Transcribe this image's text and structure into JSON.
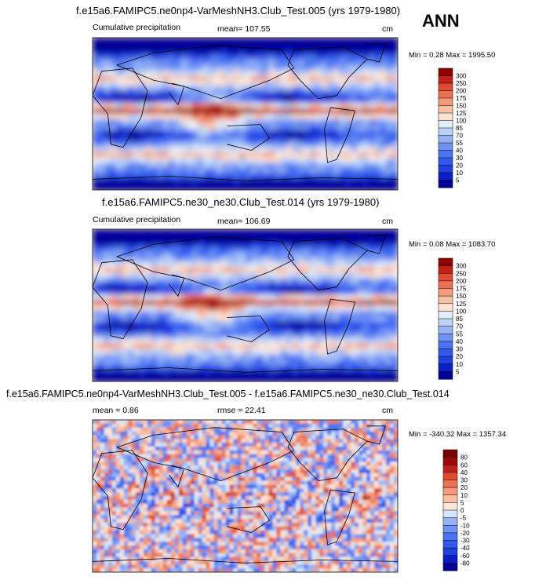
{
  "season_label": "ANN",
  "panels": [
    {
      "title": "f.e15a6.FAMIPC5.ne0np4-VarMeshNH3.Club_Test.005 (yrs 1979-1980)",
      "left_label": "Cumulative precipitation",
      "center_label": "mean= 107.55",
      "units": "cm",
      "minmax": "Min =   0.28 Max = 1995.50"
    },
    {
      "title": "f.e15a6.FAMIPC5.ne30_ne30.Club_Test.014 (yrs 1979-1980)",
      "left_label": "Cumulative precipitation",
      "center_label": "mean= 106.69",
      "units": "cm",
      "minmax": "Min =   0.08 Max = 1083.70"
    },
    {
      "title": "f.e15a6.FAMIPC5.ne0np4-VarMeshNH3.Club_Test.005 - f.e15a6.FAMIPC5.ne30_ne30.Club_Test.014",
      "left_label": "mean =   0.86",
      "center_label": "rmse =  22.41",
      "units": "cm",
      "minmax": "Min = -340.32 Max = 1357.34"
    }
  ],
  "chart_data": [
    {
      "type": "heatmap",
      "title": "f.e15a6.FAMIPC5.ne0np4-VarMeshNH3.Club_Test.005 (yrs 1979-1980)",
      "variable": "Cumulative precipitation",
      "units": "cm",
      "mean": 107.55,
      "min": 0.28,
      "max": 1995.5,
      "colorbar_levels": [
        5,
        10,
        20,
        30,
        40,
        55,
        70,
        85,
        100,
        125,
        150,
        175,
        200,
        250,
        300
      ],
      "colorbar_colors": [
        "#000099",
        "#0a1ec8",
        "#1f3fe0",
        "#3058ee",
        "#4a74f2",
        "#6f93f4",
        "#95b2f5",
        "#bcd2f8",
        "#e3eefb",
        "#fde2d2",
        "#f8bfa4",
        "#f49a78",
        "#ec7152",
        "#e04a30",
        "#c22016",
        "#8f0000"
      ]
    },
    {
      "type": "heatmap",
      "title": "f.e15a6.FAMIPC5.ne30_ne30.Club_Test.014 (yrs 1979-1980)",
      "variable": "Cumulative precipitation",
      "units": "cm",
      "mean": 106.69,
      "min": 0.08,
      "max": 1083.7,
      "colorbar_levels": [
        5,
        10,
        20,
        30,
        40,
        55,
        70,
        85,
        100,
        125,
        150,
        175,
        200,
        250,
        300
      ],
      "colorbar_colors": [
        "#000099",
        "#0a1ec8",
        "#1f3fe0",
        "#3058ee",
        "#4a74f2",
        "#6f93f4",
        "#95b2f5",
        "#bcd2f8",
        "#e3eefb",
        "#fde2d2",
        "#f8bfa4",
        "#f49a78",
        "#ec7152",
        "#e04a30",
        "#c22016",
        "#8f0000"
      ]
    },
    {
      "type": "heatmap",
      "title": "f.e15a6.FAMIPC5.ne0np4-VarMeshNH3.Club_Test.005 - f.e15a6.FAMIPC5.ne30_ne30.Club_Test.014",
      "units": "cm",
      "mean": 0.86,
      "rmse": 22.41,
      "min": -340.32,
      "max": 1357.34,
      "colorbar_levels": [
        -80,
        -60,
        -40,
        -30,
        -20,
        -10,
        -5,
        0,
        5,
        10,
        20,
        30,
        40,
        60,
        80
      ],
      "colorbar_colors": [
        "#000099",
        "#0a1ec8",
        "#1f3fe0",
        "#3058ee",
        "#4a74f2",
        "#6f93f4",
        "#95b2f5",
        "#d6e6fa",
        "#fbe6d8",
        "#f8bfa4",
        "#f49a78",
        "#ec7152",
        "#e04a30",
        "#c22016",
        "#a00808",
        "#7a0000"
      ]
    }
  ]
}
